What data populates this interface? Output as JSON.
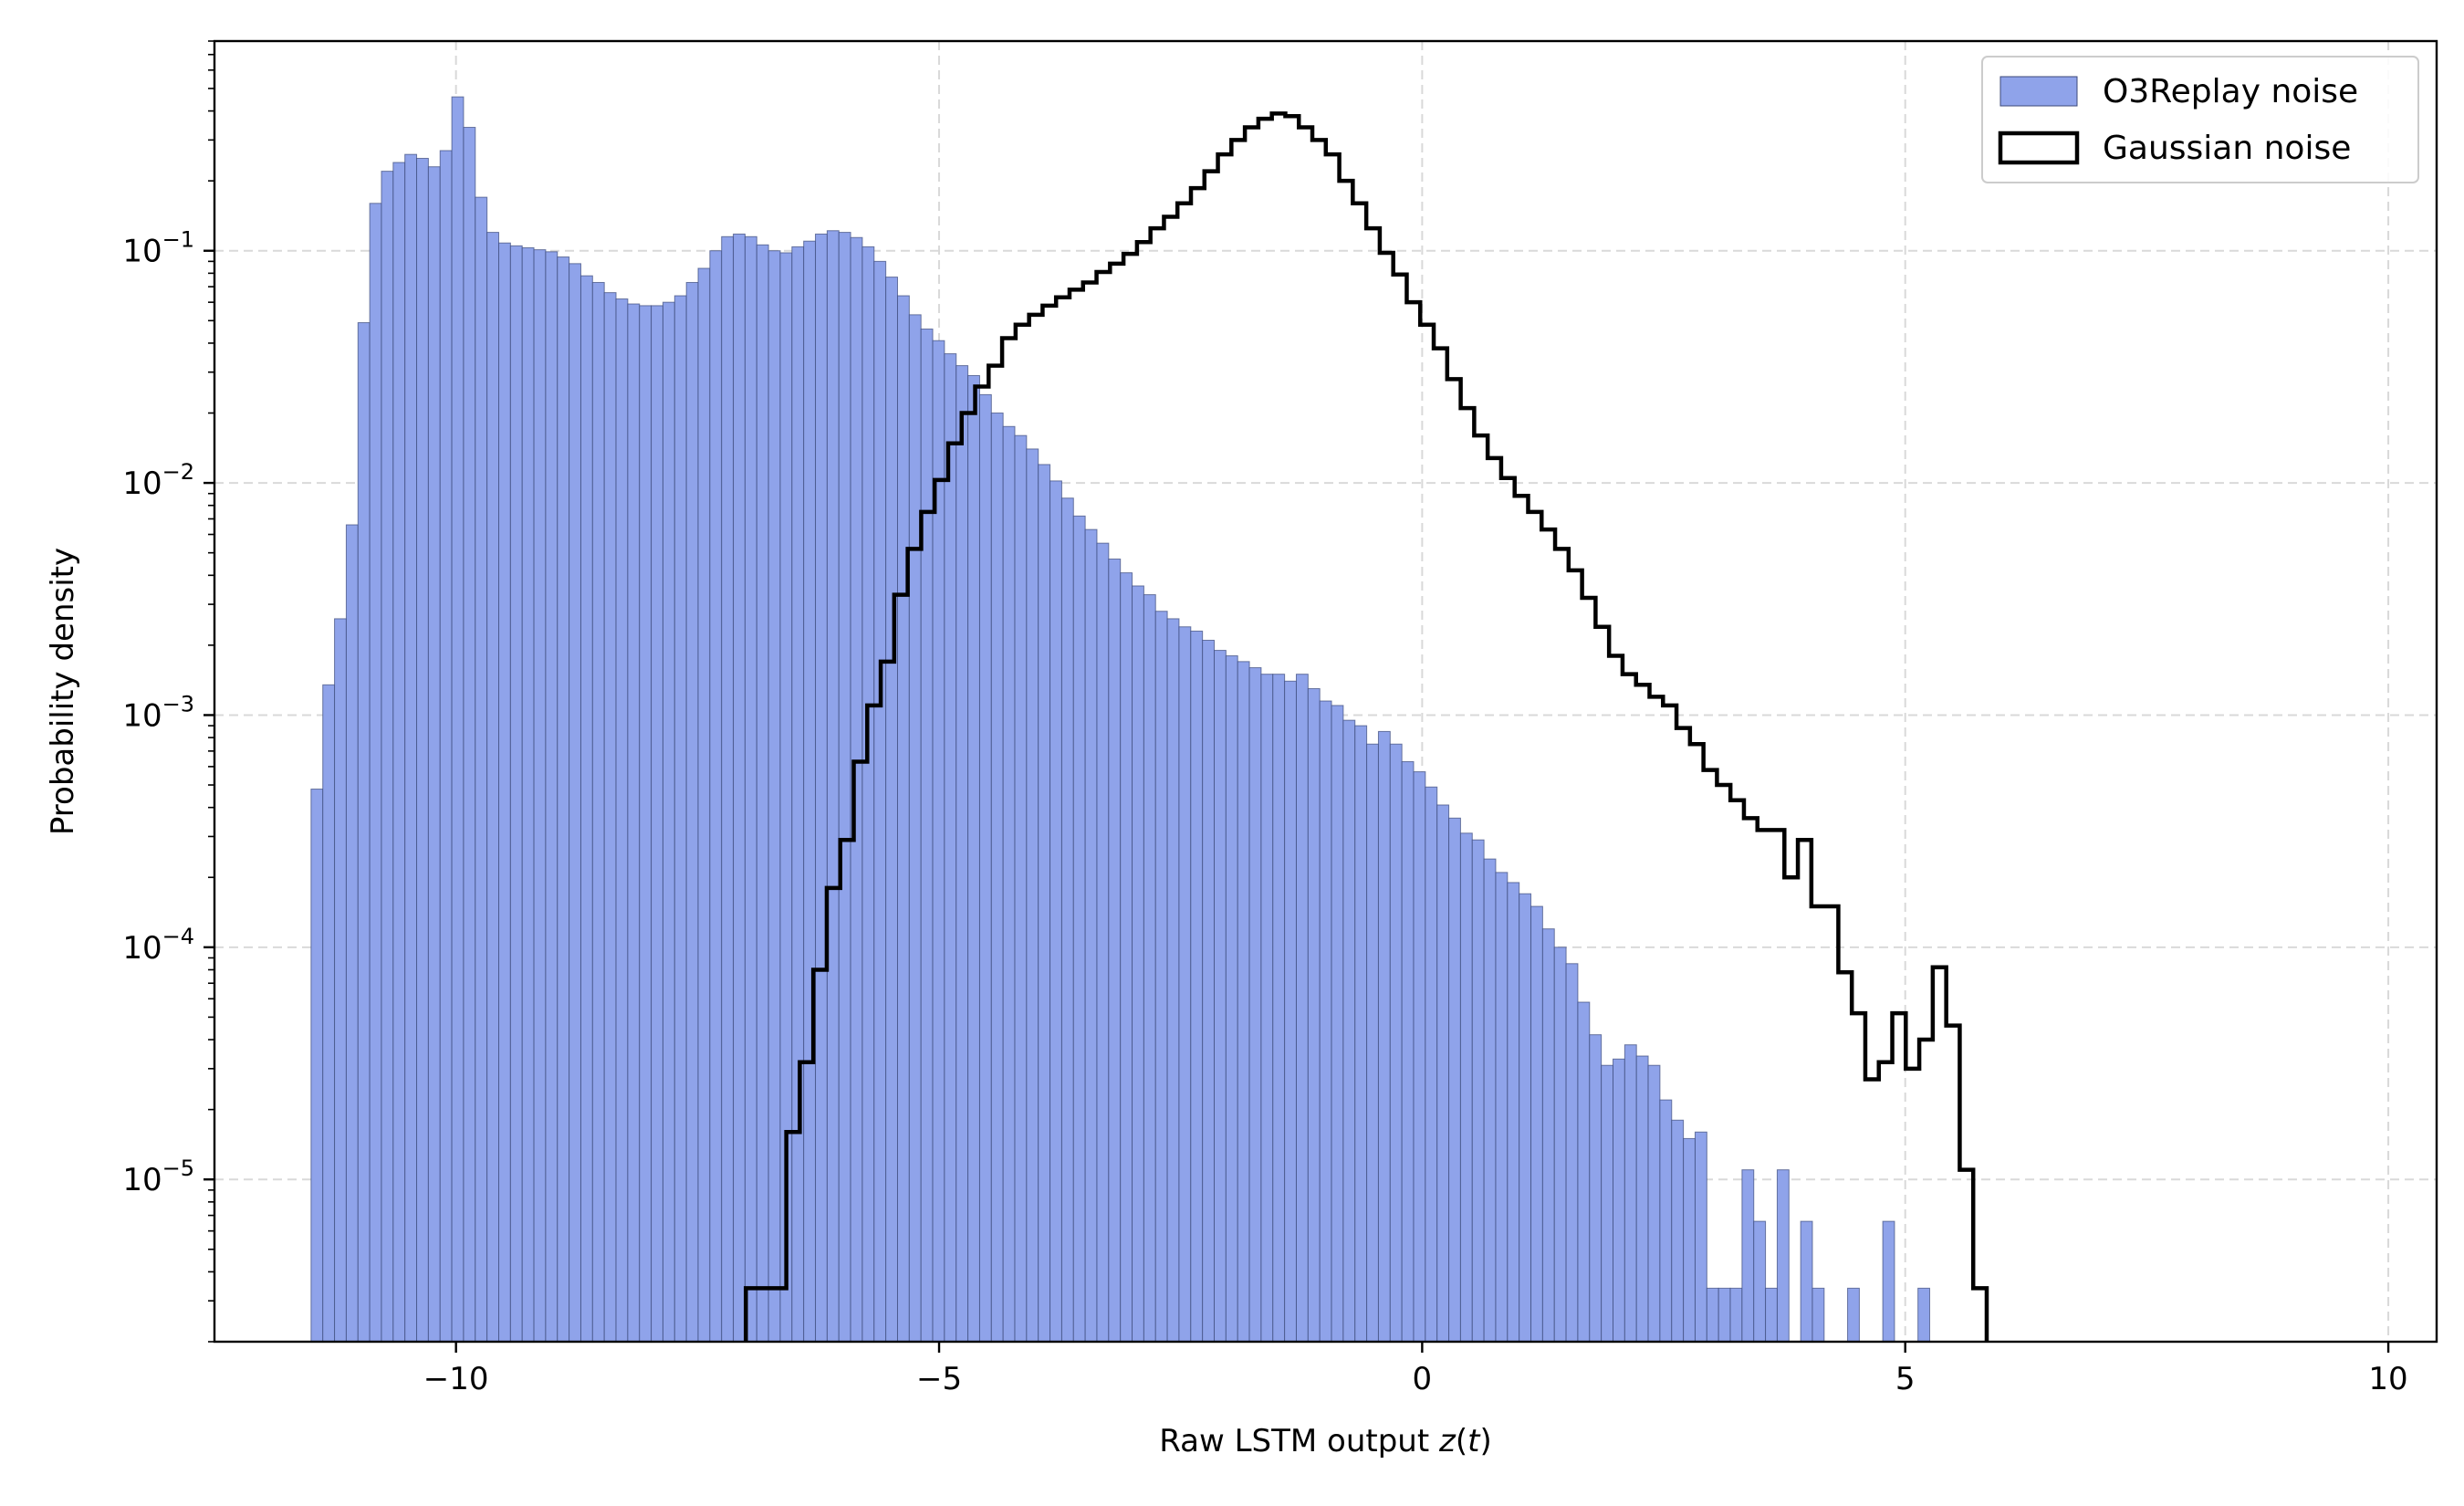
{
  "chart_data": {
    "type": "histogram",
    "xlabel": "Raw LSTM output z(t)",
    "xlabel_prefix": "Raw LSTM output ",
    "xlabel_var": "z",
    "xlabel_paren_open": "(",
    "xlabel_arg": "t",
    "xlabel_paren_close": ")",
    "ylabel": "Probability density",
    "yscale": "log",
    "xlim": [
      -12.5,
      10.5
    ],
    "ylim": [
      2e-06,
      0.8
    ],
    "x_ticks": [
      {
        "value": -10,
        "label": "−10"
      },
      {
        "value": -5,
        "label": "−5"
      },
      {
        "value": 0,
        "label": "0"
      },
      {
        "value": 5,
        "label": "5"
      },
      {
        "value": 10,
        "label": "10"
      }
    ],
    "y_ticks": [
      {
        "exp": -1,
        "base": "10",
        "sup": "−1"
      },
      {
        "exp": -2,
        "base": "10",
        "sup": "−2"
      },
      {
        "exp": -3,
        "base": "10",
        "sup": "−3"
      },
      {
        "exp": -4,
        "base": "10",
        "sup": "−4"
      },
      {
        "exp": -5,
        "base": "10",
        "sup": "−5"
      }
    ],
    "grid": true,
    "legend_position": "top-right",
    "series": [
      {
        "name": "O3Replay noise",
        "kind": "filled-bars",
        "color": "#8fa3ea",
        "edge_color": "#3c4a7a",
        "bin_start": -11.5,
        "bin_width": 0.1214,
        "values": [
          0.00048,
          0.00135,
          0.0026,
          0.0066,
          0.049,
          0.16,
          0.22,
          0.24,
          0.26,
          0.25,
          0.23,
          0.27,
          0.46,
          0.34,
          0.17,
          0.12,
          0.108,
          0.105,
          0.103,
          0.101,
          0.099,
          0.094,
          0.088,
          0.078,
          0.073,
          0.066,
          0.062,
          0.059,
          0.058,
          0.058,
          0.06,
          0.064,
          0.073,
          0.084,
          0.1,
          0.115,
          0.118,
          0.115,
          0.106,
          0.1,
          0.098,
          0.104,
          0.11,
          0.118,
          0.122,
          0.12,
          0.114,
          0.104,
          0.09,
          0.077,
          0.064,
          0.053,
          0.046,
          0.041,
          0.036,
          0.032,
          0.029,
          0.024,
          0.02,
          0.0175,
          0.016,
          0.014,
          0.012,
          0.0102,
          0.0086,
          0.0072,
          0.0063,
          0.0055,
          0.0047,
          0.0041,
          0.0036,
          0.0033,
          0.0028,
          0.0026,
          0.0024,
          0.0023,
          0.0021,
          0.0019,
          0.0018,
          0.0017,
          0.0016,
          0.0015,
          0.0015,
          0.0014,
          0.0015,
          0.0013,
          0.00115,
          0.0011,
          0.00095,
          0.0009,
          0.00075,
          0.00085,
          0.00075,
          0.00063,
          0.00057,
          0.00049,
          0.00041,
          0.00036,
          0.00031,
          0.00029,
          0.00024,
          0.00021,
          0.00019,
          0.00017,
          0.00015,
          0.00012,
          0.0001,
          8.5e-05,
          5.8e-05,
          4.2e-05,
          3.1e-05,
          3.3e-05,
          3.8e-05,
          3.4e-05,
          3.1e-05,
          2.2e-05,
          1.8e-05,
          1.5e-05,
          1.6e-05,
          3.4e-06,
          3.4e-06,
          3.4e-06,
          1.1e-05,
          6.6e-06,
          3.4e-06,
          1.1e-05,
          0.0,
          6.6e-06,
          3.4e-06,
          0.0,
          0.0,
          3.4e-06,
          0.0,
          0.0,
          6.6e-06,
          0.0,
          0.0,
          3.4e-06
        ]
      },
      {
        "name": "Gaussian noise",
        "kind": "step",
        "color": "#000000",
        "bin_start": -7.0,
        "bin_width": 0.1396,
        "values": [
          3.4e-06,
          3.4e-06,
          3.4e-06,
          1.6e-05,
          3.2e-05,
          8e-05,
          0.00018,
          0.00029,
          0.00063,
          0.0011,
          0.0017,
          0.0033,
          0.0052,
          0.0075,
          0.0103,
          0.0148,
          0.02,
          0.026,
          0.032,
          0.042,
          0.048,
          0.053,
          0.058,
          0.063,
          0.068,
          0.073,
          0.081,
          0.088,
          0.097,
          0.109,
          0.125,
          0.14,
          0.16,
          0.186,
          0.22,
          0.26,
          0.3,
          0.34,
          0.37,
          0.39,
          0.38,
          0.34,
          0.3,
          0.26,
          0.2,
          0.16,
          0.125,
          0.098,
          0.079,
          0.06,
          0.048,
          0.038,
          0.028,
          0.021,
          0.016,
          0.0128,
          0.0105,
          0.0088,
          0.0075,
          0.0063,
          0.0052,
          0.0042,
          0.0032,
          0.0024,
          0.0018,
          0.0015,
          0.00135,
          0.0012,
          0.0011,
          0.00088,
          0.00075,
          0.00058,
          0.0005,
          0.00043,
          0.00036,
          0.00032,
          0.00032,
          0.0002,
          0.00029,
          0.00015,
          0.00015,
          7.8e-05,
          5.2e-05,
          2.7e-05,
          3.2e-05,
          5.2e-05,
          3e-05,
          4e-05,
          8.2e-05,
          4.6e-05,
          1.1e-05,
          3.4e-06
        ]
      }
    ]
  }
}
